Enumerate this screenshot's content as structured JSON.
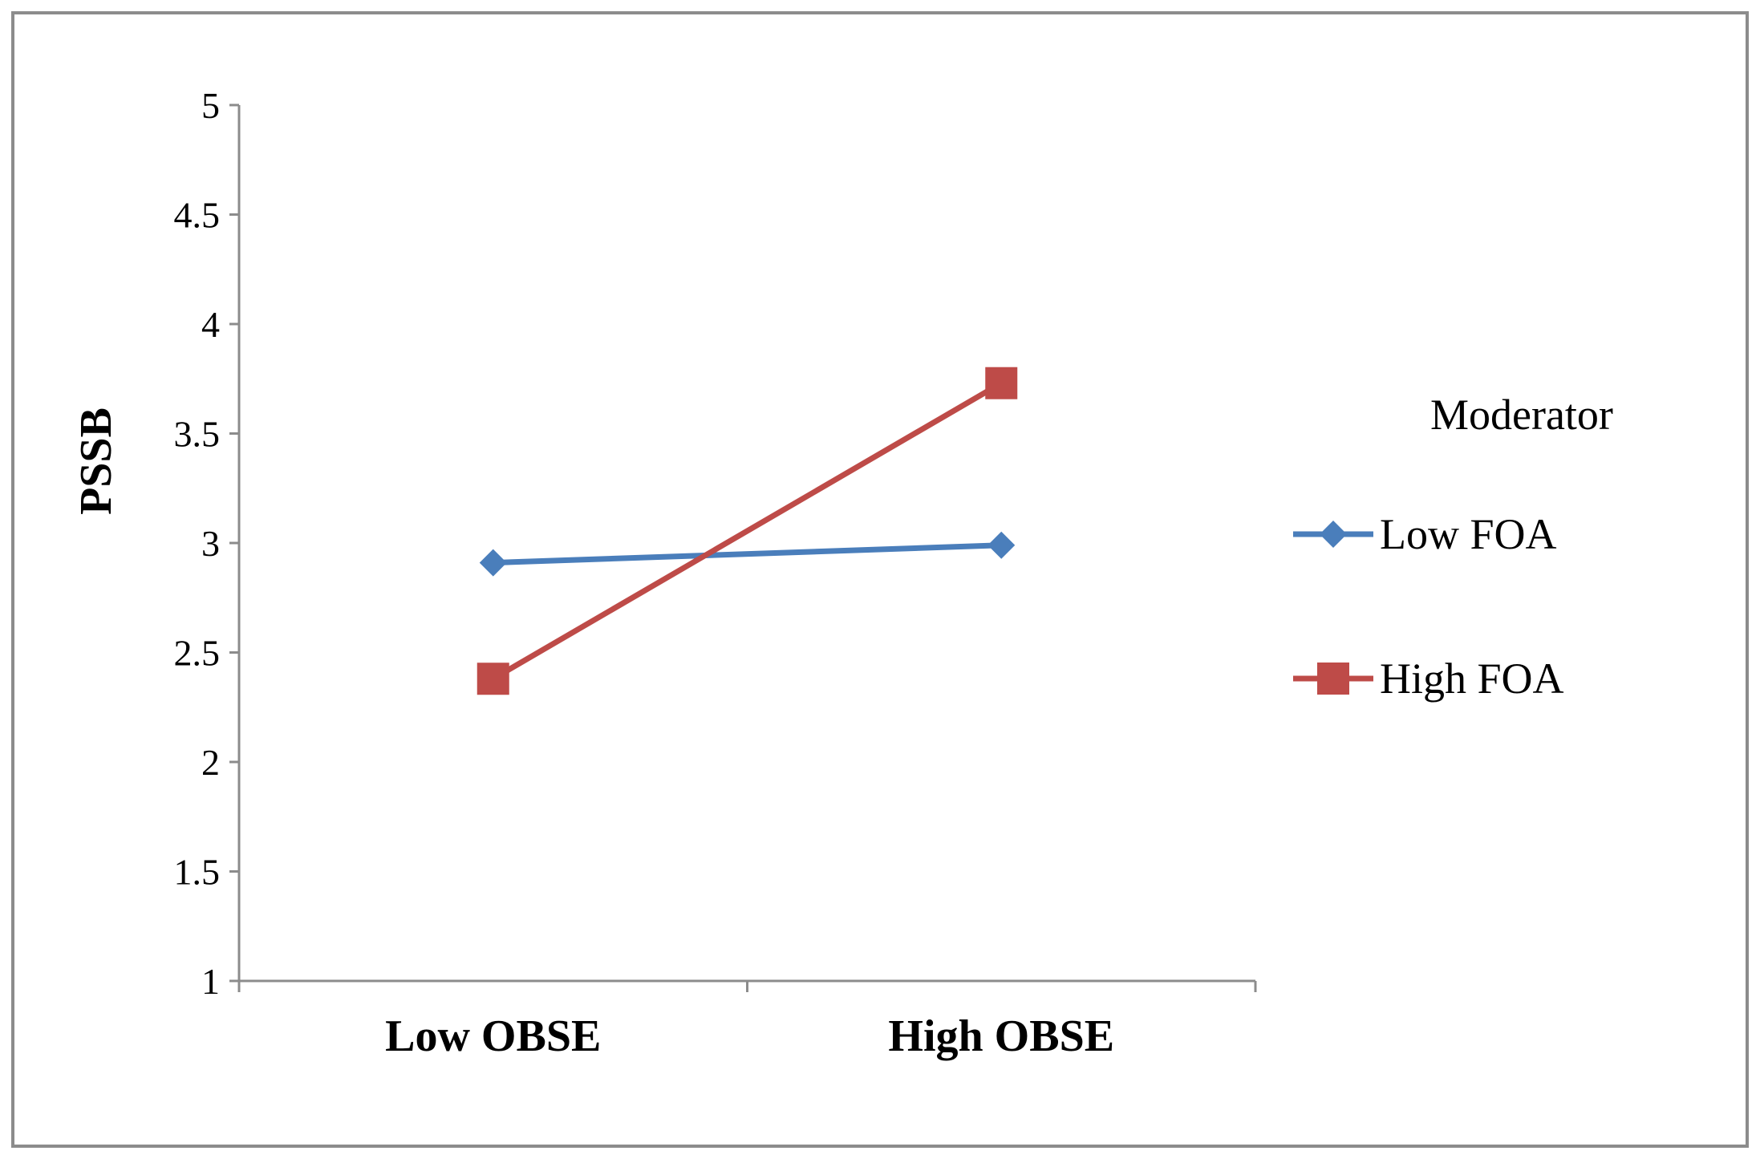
{
  "chart_data": {
    "type": "line",
    "title": "",
    "xlabel": "",
    "ylabel": "PSSB",
    "categories": [
      "Low OBSE",
      "High OBSE"
    ],
    "ylim": [
      1,
      5
    ],
    "yticks": [
      "1",
      "1.5",
      "2",
      "2.5",
      "3",
      "3.5",
      "4",
      "4.5",
      "5"
    ],
    "grid": false,
    "legend": {
      "title": "Moderator",
      "placement": "right"
    },
    "series": [
      {
        "name": "Low FOA",
        "values": [
          2.91,
          2.99
        ],
        "color": "#4A7EBB",
        "marker": "diamond"
      },
      {
        "name": "High FOA",
        "values": [
          2.38,
          3.73
        ],
        "color": "#BE4B48",
        "marker": "square"
      }
    ]
  }
}
